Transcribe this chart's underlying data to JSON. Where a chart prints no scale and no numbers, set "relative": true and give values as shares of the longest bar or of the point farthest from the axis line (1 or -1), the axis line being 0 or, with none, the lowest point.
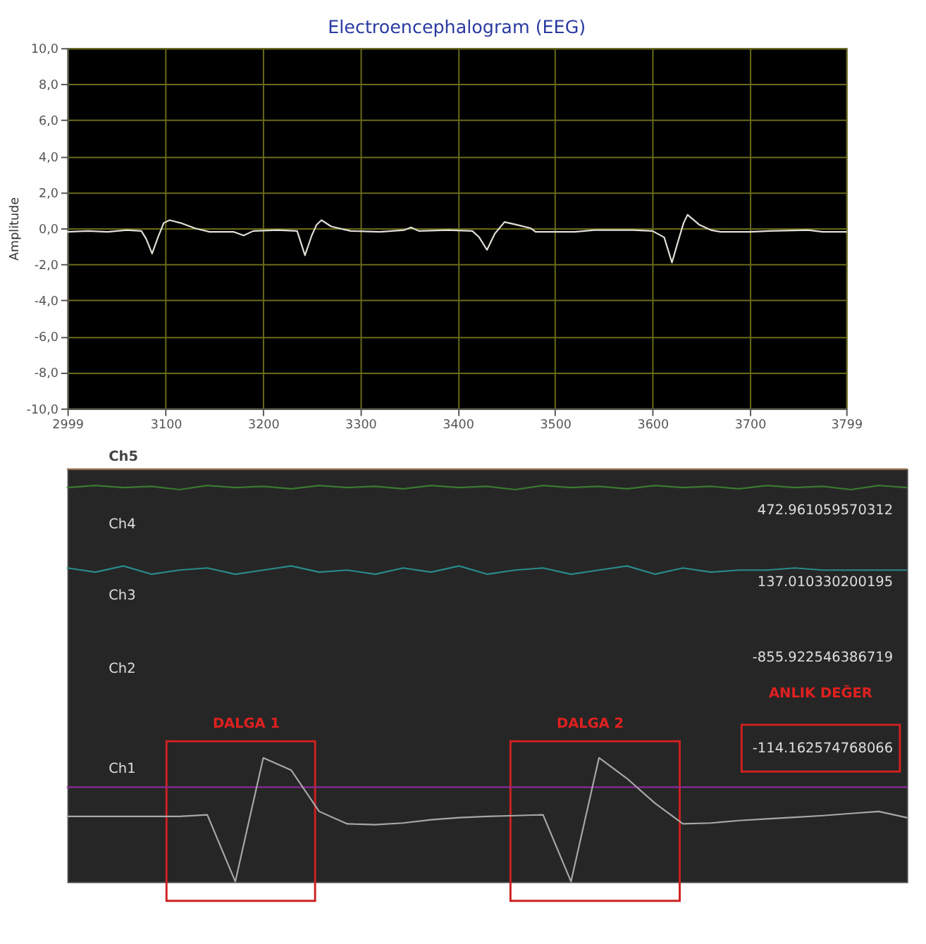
{
  "chart_data": [
    {
      "type": "line",
      "title": "Electroencephalogram (EEG)",
      "ylabel": "Amplitude",
      "xlim": [
        2999,
        3799
      ],
      "xticks": [
        2999,
        3100,
        3200,
        3300,
        3400,
        3500,
        3600,
        3700,
        3799
      ],
      "ylim": [
        -10,
        10
      ],
      "yticks": [
        {
          "value": -10,
          "label": "-10,0"
        },
        {
          "value": -8,
          "label": "-8,0"
        },
        {
          "value": -6,
          "label": "-6,0"
        },
        {
          "value": -4,
          "label": "-4,0"
        },
        {
          "value": -2,
          "label": "-2,0"
        },
        {
          "value": 0,
          "label": "0,0"
        },
        {
          "value": 2,
          "label": "2,0"
        },
        {
          "value": 4,
          "label": "4,0"
        },
        {
          "value": 6,
          "label": "6,0"
        },
        {
          "value": 8,
          "label": "8,0"
        },
        {
          "value": 10,
          "label": "10,0"
        }
      ],
      "grid": true,
      "legend": false,
      "line_style": "solid",
      "series": [
        {
          "color": "#e0e0d8",
          "x": [
            2999,
            3020,
            3040,
            3060,
            3075,
            3080,
            3086,
            3092,
            3098,
            3104,
            3115,
            3130,
            3145,
            3170,
            3180,
            3190,
            3215,
            3235,
            3243,
            3250,
            3255,
            3260,
            3270,
            3290,
            3320,
            3345,
            3352,
            3360,
            3390,
            3415,
            3422,
            3430,
            3438,
            3448,
            3460,
            3475,
            3480,
            3520,
            3540,
            3580,
            3600,
            3612,
            3620,
            3627,
            3632,
            3636,
            3648,
            3660,
            3670,
            3700,
            3720,
            3760,
            3775,
            3799
          ],
          "values": [
            -0.2,
            -0.15,
            -0.2,
            -0.1,
            -0.15,
            -0.6,
            -1.4,
            -0.5,
            0.3,
            0.45,
            0.3,
            0.0,
            -0.2,
            -0.2,
            -0.4,
            -0.15,
            -0.1,
            -0.15,
            -1.5,
            -0.4,
            0.2,
            0.45,
            0.1,
            -0.15,
            -0.2,
            -0.1,
            0.05,
            -0.15,
            -0.1,
            -0.15,
            -0.5,
            -1.2,
            -0.3,
            0.35,
            0.2,
            0.0,
            -0.2,
            -0.2,
            -0.1,
            -0.1,
            -0.15,
            -0.5,
            -1.9,
            -0.6,
            0.3,
            0.75,
            0.2,
            -0.1,
            -0.2,
            -0.2,
            -0.15,
            -0.1,
            -0.2,
            -0.2
          ]
        }
      ]
    },
    {
      "type": "line",
      "relative": true,
      "grid": false,
      "legend": false,
      "tick_labels": false,
      "line_style": "solid",
      "categories": [
        null,
        null,
        null,
        null,
        null,
        null,
        null,
        null,
        null,
        null,
        null,
        null,
        null,
        null,
        null,
        null,
        null,
        null,
        null,
        null,
        null,
        null,
        null,
        null,
        null,
        null,
        null,
        null,
        null,
        null,
        null
      ],
      "annotations": [
        "Ch5",
        "Ch4",
        "Ch3",
        "Ch2",
        "Ch1",
        "472.961059570312",
        "137.010330200195",
        "-855.922546386719",
        "-114.162574768066",
        "ANLIK DEĞER",
        "DALGA 1",
        "DALGA 2"
      ],
      "series": [
        {
          "color": "#a07850",
          "values": [
            1,
            1,
            1,
            1,
            1,
            1,
            1,
            1,
            1,
            1,
            1,
            1,
            1,
            1,
            1,
            1,
            1,
            1,
            1,
            1,
            1,
            1,
            1,
            1,
            1,
            1,
            1,
            1,
            1,
            1,
            1
          ]
        },
        {
          "color": "#3a7a30",
          "values": [
            0.955,
            0.96,
            0.955,
            0.958,
            0.95,
            0.96,
            0.955,
            0.958,
            0.952,
            0.96,
            0.955,
            0.958,
            0.952,
            0.96,
            0.955,
            0.958,
            0.95,
            0.96,
            0.955,
            0.958,
            0.952,
            0.96,
            0.955,
            0.958,
            0.952,
            0.96,
            0.955,
            0.958,
            0.95,
            0.96,
            0.955
          ]
        },
        {
          "color": "#2a8a8a",
          "values": [
            0.76,
            0.75,
            0.765,
            0.745,
            0.755,
            0.76,
            0.745,
            0.755,
            0.765,
            0.75,
            0.755,
            0.745,
            0.76,
            0.75,
            0.765,
            0.745,
            0.755,
            0.76,
            0.745,
            0.755,
            0.765,
            0.745,
            0.76,
            0.75,
            0.755,
            0.755,
            0.76,
            0.755,
            0.755,
            0.755,
            0.755
          ]
        },
        {
          "color": "#8a2a9a",
          "values": [
            0.229,
            0.229,
            0.229,
            0.229,
            0.229,
            0.229,
            0.229,
            0.229,
            0.229,
            0.229,
            0.229,
            0.229,
            0.229,
            0.229,
            0.229,
            0.229,
            0.229,
            0.229,
            0.229,
            0.229,
            0.229,
            0.229,
            0.229,
            0.229,
            0.229,
            0.229,
            0.229,
            0.229,
            0.229,
            0.229,
            0.229
          ]
        },
        {
          "color": "#a8a8a8",
          "values": [
            0.158,
            0.158,
            0.158,
            0.158,
            0.158,
            0.162,
            0,
            0.3,
            0.27,
            0.17,
            0.14,
            0.138,
            0.142,
            0.15,
            0.155,
            0.158,
            0.16,
            0.162,
            0,
            0.3,
            0.25,
            0.19,
            0.14,
            0.142,
            0.148,
            0.152,
            0.156,
            0.16,
            0.165,
            0.17,
            0.155
          ]
        }
      ]
    }
  ]
}
